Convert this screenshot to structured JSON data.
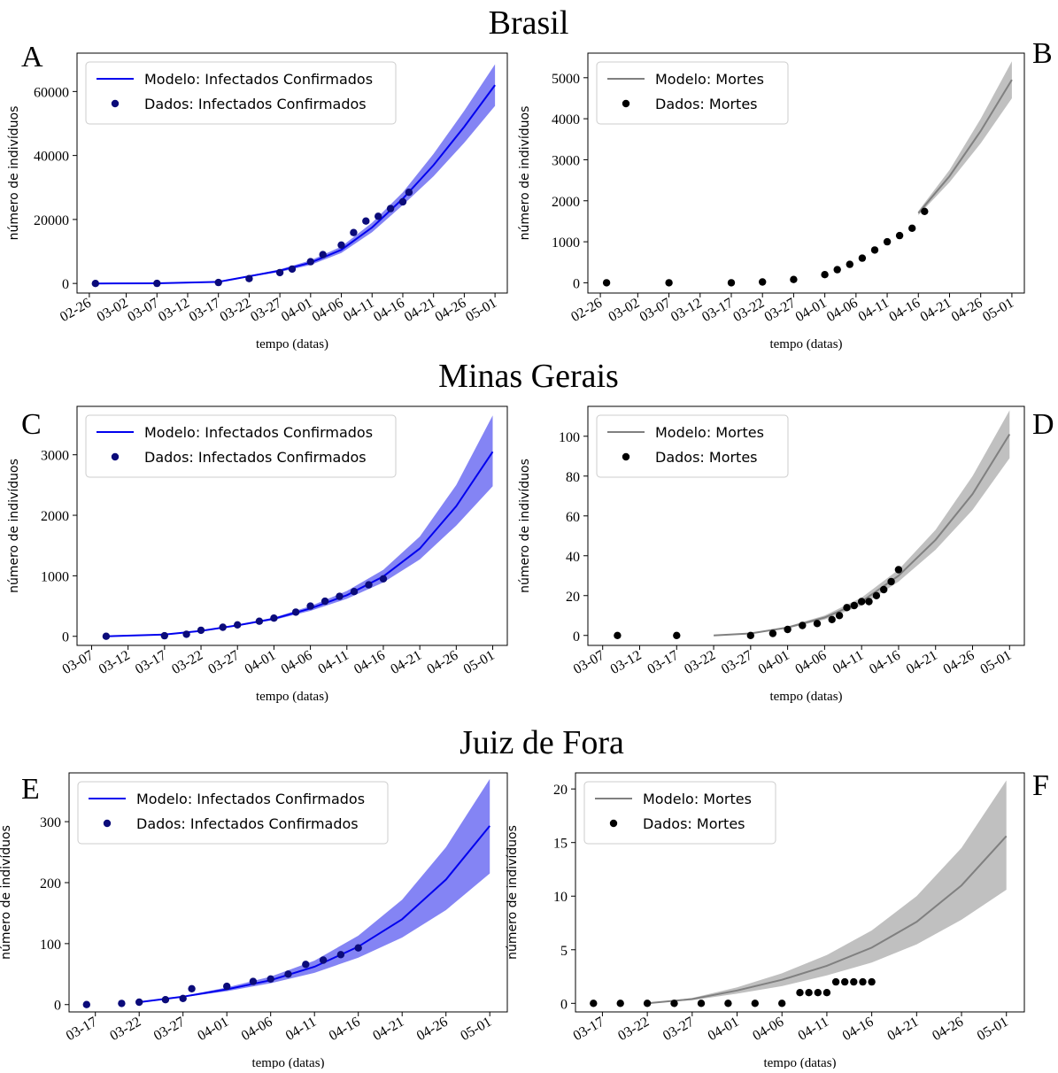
{
  "figure": {
    "sections": [
      {
        "title": "Brasil"
      },
      {
        "title": "Minas Gerais"
      },
      {
        "title": "Juiz de Fora"
      }
    ]
  },
  "colors": {
    "infected_line": "#0000ee",
    "infected_band": "#6f6ff2",
    "infected_points": "#0b0b7a",
    "deaths_line": "#808080",
    "deaths_band": "#c0c0c0",
    "deaths_points": "#000000"
  },
  "chart_data": [
    {
      "panel": "A",
      "type": "line",
      "xlabel": "tempo (datas)",
      "ylabel": "número de indivíduos",
      "x_ticks": [
        "02-26",
        "03-02",
        "03-07",
        "03-12",
        "03-17",
        "03-22",
        "03-27",
        "04-01",
        "04-06",
        "04-11",
        "04-16",
        "04-21",
        "04-26",
        "05-01"
      ],
      "ylim": [
        -3000,
        72000
      ],
      "y_ticks": [
        0,
        20000,
        40000,
        60000
      ],
      "series": [
        {
          "name": "Modelo: Infectados Confirmados",
          "kind": "model",
          "x": [
            "02-27",
            "03-07",
            "03-17",
            "03-27",
            "04-01",
            "04-06",
            "04-11",
            "04-16",
            "04-21",
            "04-26",
            "05-01"
          ],
          "y": [
            0,
            50,
            500,
            4000,
            6500,
            10500,
            17500,
            26500,
            37000,
            49000,
            62000
          ],
          "y_low": [
            0,
            50,
            450,
            3600,
            5800,
            9500,
            16000,
            24500,
            33500,
            44000,
            55500
          ],
          "y_high": [
            0,
            50,
            550,
            4400,
            7200,
            11500,
            19000,
            28500,
            40500,
            54000,
            68500
          ]
        },
        {
          "name": "Dados: Infectados Confirmados",
          "kind": "data",
          "x": [
            "02-27",
            "03-07",
            "03-17",
            "03-22",
            "03-27",
            "03-29",
            "04-01",
            "04-03",
            "04-06",
            "04-08",
            "04-10",
            "04-12",
            "04-14",
            "04-16",
            "04-17"
          ],
          "y": [
            0,
            20,
            300,
            1500,
            3400,
            4500,
            6800,
            9000,
            12000,
            15900,
            19500,
            21000,
            23400,
            25500,
            28500
          ]
        }
      ]
    },
    {
      "panel": "B",
      "type": "line",
      "xlabel": "tempo (datas)",
      "ylabel": "número de indivíduos",
      "x_ticks": [
        "02-26",
        "03-02",
        "03-07",
        "03-12",
        "03-17",
        "03-22",
        "03-27",
        "04-01",
        "04-06",
        "04-11",
        "04-16",
        "04-21",
        "04-26",
        "05-01"
      ],
      "ylim": [
        -250,
        5600
      ],
      "y_ticks": [
        0,
        1000,
        2000,
        3000,
        4000,
        5000
      ],
      "series": [
        {
          "name": "Modelo: Mortes",
          "kind": "model",
          "x": [
            "04-16",
            "04-21",
            "04-26",
            "05-01"
          ],
          "y": [
            1700,
            2600,
            3700,
            4950
          ],
          "y_low": [
            1650,
            2450,
            3400,
            4500
          ],
          "y_high": [
            1750,
            2750,
            4000,
            5400
          ]
        },
        {
          "name": "Dados: Mortes",
          "kind": "data",
          "x": [
            "02-27",
            "03-07",
            "03-17",
            "03-22",
            "03-27",
            "04-01",
            "04-03",
            "04-05",
            "04-07",
            "04-09",
            "04-11",
            "04-13",
            "04-15",
            "04-17"
          ],
          "y": [
            0,
            0,
            0,
            20,
            80,
            200,
            320,
            450,
            600,
            800,
            1000,
            1150,
            1330,
            1740
          ]
        }
      ]
    },
    {
      "panel": "C",
      "type": "line",
      "xlabel": "tempo (datas)",
      "ylabel": "número de indivíduos",
      "x_ticks": [
        "03-07",
        "03-12",
        "03-17",
        "03-22",
        "03-27",
        "04-01",
        "04-06",
        "04-11",
        "04-16",
        "04-21",
        "04-26",
        "05-01"
      ],
      "ylim": [
        -150,
        3800
      ],
      "y_ticks": [
        0,
        1000,
        2000,
        3000
      ],
      "series": [
        {
          "name": "Modelo: Infectados Confirmados",
          "kind": "model",
          "x": [
            "03-09",
            "03-17",
            "03-22",
            "03-27",
            "04-01",
            "04-06",
            "04-11",
            "04-16",
            "04-21",
            "04-26",
            "05-01"
          ],
          "y": [
            0,
            30,
            90,
            180,
            290,
            460,
            680,
            990,
            1450,
            2150,
            3050
          ],
          "y_low": [
            0,
            30,
            85,
            170,
            270,
            420,
            620,
            890,
            1270,
            1830,
            2480
          ],
          "y_high": [
            0,
            30,
            95,
            190,
            310,
            500,
            750,
            1100,
            1650,
            2500,
            3650
          ]
        },
        {
          "name": "Dados: Infectados Confirmados",
          "kind": "data",
          "x": [
            "03-09",
            "03-17",
            "03-20",
            "03-22",
            "03-25",
            "03-27",
            "03-30",
            "04-01",
            "04-04",
            "04-06",
            "04-08",
            "04-10",
            "04-12",
            "04-14",
            "04-16"
          ],
          "y": [
            0,
            10,
            35,
            100,
            150,
            190,
            250,
            300,
            400,
            500,
            580,
            660,
            740,
            850,
            950
          ]
        }
      ]
    },
    {
      "panel": "D",
      "type": "line",
      "xlabel": "tempo (datas)",
      "ylabel": "número de indivíduos",
      "x_ticks": [
        "03-07",
        "03-12",
        "03-17",
        "03-22",
        "03-27",
        "04-01",
        "04-06",
        "04-11",
        "04-16",
        "04-21",
        "04-26",
        "05-01"
      ],
      "ylim": [
        -5,
        115
      ],
      "y_ticks": [
        0,
        20,
        40,
        60,
        80,
        100
      ],
      "series": [
        {
          "name": "Modelo: Mortes",
          "kind": "model",
          "x": [
            "03-22",
            "03-27",
            "04-01",
            "04-06",
            "04-11",
            "04-16",
            "04-21",
            "04-26",
            "05-01"
          ],
          "y": [
            0,
            1,
            4,
            9,
            17,
            30,
            48,
            71,
            101
          ],
          "y_low": [
            0,
            0.8,
            3.5,
            8,
            15,
            27,
            43,
            63,
            89
          ],
          "y_high": [
            0,
            1.2,
            4.5,
            10,
            19,
            33,
            53,
            80,
            113
          ]
        },
        {
          "name": "Dados: Mortes",
          "kind": "data",
          "x": [
            "03-09",
            "03-17",
            "03-27",
            "03-30",
            "04-01",
            "04-03",
            "04-05",
            "04-07",
            "04-08",
            "04-09",
            "04-10",
            "04-11",
            "04-12",
            "04-13",
            "04-14",
            "04-15",
            "04-16"
          ],
          "y": [
            0,
            0,
            0,
            1,
            3,
            5,
            6,
            8,
            10,
            14,
            15,
            17,
            17,
            20,
            23,
            27,
            33
          ]
        }
      ]
    },
    {
      "panel": "E",
      "type": "line",
      "xlabel": "tempo (datas)",
      "ylabel": "número de indivíduos",
      "x_ticks": [
        "03-17",
        "03-22",
        "03-27",
        "04-01",
        "04-06",
        "04-11",
        "04-16",
        "04-21",
        "04-26",
        "05-01"
      ],
      "ylim": [
        -12,
        380
      ],
      "y_ticks": [
        0,
        100,
        200,
        300
      ],
      "series": [
        {
          "name": "Modelo: Infectados Confirmados",
          "kind": "model",
          "x": [
            "03-22",
            "03-27",
            "04-01",
            "04-06",
            "04-11",
            "04-16",
            "04-21",
            "04-26",
            "05-01"
          ],
          "y": [
            4,
            13,
            25,
            40,
            62,
            95,
            140,
            205,
            293
          ],
          "y_low": [
            4,
            12,
            22,
            35,
            52,
            77,
            110,
            155,
            215
          ],
          "y_high": [
            4,
            14,
            28,
            46,
            72,
            113,
            172,
            258,
            370
          ]
        },
        {
          "name": "Dados: Infectados Confirmados",
          "kind": "data",
          "x": [
            "03-16",
            "03-20",
            "03-22",
            "03-25",
            "03-27",
            "03-28",
            "04-01",
            "04-04",
            "04-06",
            "04-08",
            "04-10",
            "04-12",
            "04-14",
            "04-16"
          ],
          "y": [
            0,
            2,
            4,
            8,
            10,
            26,
            30,
            38,
            42,
            50,
            66,
            73,
            82,
            93
          ]
        }
      ]
    },
    {
      "panel": "F",
      "type": "line",
      "xlabel": "tempo (datas)",
      "ylabel": "número de indivíduos",
      "x_ticks": [
        "03-17",
        "03-22",
        "03-27",
        "04-01",
        "04-06",
        "04-11",
        "04-16",
        "04-21",
        "04-26",
        "05-01"
      ],
      "ylim": [
        -0.8,
        21.5
      ],
      "y_ticks": [
        0,
        5,
        10,
        15,
        20
      ],
      "series": [
        {
          "name": "Modelo: Mortes",
          "kind": "model",
          "x": [
            "03-22",
            "03-27",
            "04-01",
            "04-06",
            "04-11",
            "04-16",
            "04-21",
            "04-26",
            "05-01"
          ],
          "y": [
            0,
            0.4,
            1.2,
            2.2,
            3.5,
            5.2,
            7.6,
            11,
            15.6
          ],
          "y_low": [
            0,
            0.3,
            0.9,
            1.6,
            2.6,
            3.8,
            5.5,
            7.8,
            10.6
          ],
          "y_high": [
            0,
            0.5,
            1.5,
            2.8,
            4.5,
            6.8,
            10,
            14.5,
            20.8
          ]
        },
        {
          "name": "Dados: Mortes",
          "kind": "data",
          "x": [
            "03-16",
            "03-19",
            "03-22",
            "03-25",
            "03-28",
            "03-31",
            "04-03",
            "04-06",
            "04-08",
            "04-09",
            "04-10",
            "04-11",
            "04-12",
            "04-13",
            "04-14",
            "04-15",
            "04-16"
          ],
          "y": [
            0,
            0,
            0,
            0,
            0,
            0,
            0,
            0,
            1,
            1,
            1,
            1,
            2,
            2,
            2,
            2,
            2
          ]
        }
      ]
    }
  ]
}
